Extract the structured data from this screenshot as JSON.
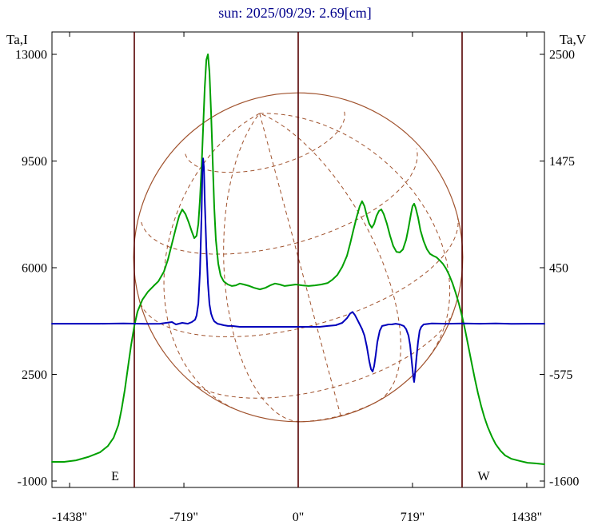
{
  "chart_data": {
    "type": "line",
    "title": "sun: 2025/09/29: 2.69[cm]",
    "title_color": "#00008B",
    "background": "#ffffff",
    "left_axis": {
      "title": "Ta,I",
      "ticks": [
        13000,
        9500,
        6000,
        2500,
        -1000
      ]
    },
    "right_axis": {
      "title": "Ta,V",
      "ticks": [
        2500,
        1475,
        450,
        -575,
        -1600
      ]
    },
    "x_axis": {
      "tick_labels": [
        "-1438\"",
        "-719\"",
        "0\"",
        "719\"",
        "1438\""
      ],
      "tick_values": [
        -1438,
        -719,
        0,
        719,
        1438
      ],
      "range": [
        -1549,
        1549
      ],
      "unit": "arcsec"
    },
    "markers": {
      "east_label": "E",
      "west_label": "W",
      "east_arcsec": -1031,
      "center_arcsec": 0,
      "west_arcsec": 1031,
      "color": "#550000"
    },
    "sun_disk": {
      "radius_arcsec": 1035,
      "b0_deg": 25,
      "p_deg": -15,
      "grid_step_deg": 30,
      "color": "#A0522D"
    },
    "series": [
      {
        "name": "Ta,I",
        "axis": "left",
        "color": "#00A000",
        "points": [
          [
            -1549,
            -370
          ],
          [
            -1473,
            -370
          ],
          [
            -1398,
            -320
          ],
          [
            -1322,
            -210
          ],
          [
            -1247,
            -60
          ],
          [
            -1197,
            150
          ],
          [
            -1161,
            420
          ],
          [
            -1131,
            840
          ],
          [
            -1111,
            1360
          ],
          [
            -1091,
            1990
          ],
          [
            -1071,
            2720
          ],
          [
            -1051,
            3460
          ],
          [
            -1031,
            4090
          ],
          [
            -1011,
            4560
          ],
          [
            -980,
            4950
          ],
          [
            -945,
            5210
          ],
          [
            -910,
            5400
          ],
          [
            -880,
            5550
          ],
          [
            -845,
            5870
          ],
          [
            -820,
            6260
          ],
          [
            -794,
            6790
          ],
          [
            -769,
            7310
          ],
          [
            -749,
            7700
          ],
          [
            -729,
            7910
          ],
          [
            -709,
            7760
          ],
          [
            -689,
            7490
          ],
          [
            -669,
            7180
          ],
          [
            -654,
            6970
          ],
          [
            -639,
            7050
          ],
          [
            -628,
            7440
          ],
          [
            -618,
            8230
          ],
          [
            -608,
            9280
          ],
          [
            -598,
            10590
          ],
          [
            -588,
            11900
          ],
          [
            -578,
            12820
          ],
          [
            -568,
            13000
          ],
          [
            -558,
            12420
          ],
          [
            -548,
            11110
          ],
          [
            -538,
            9540
          ],
          [
            -528,
            7970
          ],
          [
            -518,
            6920
          ],
          [
            -503,
            6130
          ],
          [
            -488,
            5740
          ],
          [
            -468,
            5550
          ],
          [
            -442,
            5450
          ],
          [
            -417,
            5400
          ],
          [
            -392,
            5420
          ],
          [
            -367,
            5480
          ],
          [
            -342,
            5450
          ],
          [
            -307,
            5400
          ],
          [
            -277,
            5340
          ],
          [
            -241,
            5290
          ],
          [
            -206,
            5340
          ],
          [
            -176,
            5420
          ],
          [
            -146,
            5480
          ],
          [
            -116,
            5450
          ],
          [
            -85,
            5400
          ],
          [
            -55,
            5420
          ],
          [
            -15,
            5450
          ],
          [
            25,
            5420
          ],
          [
            65,
            5400
          ],
          [
            106,
            5420
          ],
          [
            146,
            5450
          ],
          [
            186,
            5500
          ],
          [
            216,
            5610
          ],
          [
            246,
            5760
          ],
          [
            277,
            6030
          ],
          [
            307,
            6390
          ],
          [
            327,
            6790
          ],
          [
            347,
            7230
          ],
          [
            367,
            7650
          ],
          [
            387,
            8020
          ],
          [
            402,
            8180
          ],
          [
            417,
            8020
          ],
          [
            432,
            7700
          ],
          [
            447,
            7440
          ],
          [
            463,
            7310
          ],
          [
            478,
            7440
          ],
          [
            493,
            7700
          ],
          [
            508,
            7860
          ],
          [
            523,
            7910
          ],
          [
            538,
            7760
          ],
          [
            558,
            7440
          ],
          [
            578,
            7050
          ],
          [
            598,
            6710
          ],
          [
            618,
            6520
          ],
          [
            639,
            6500
          ],
          [
            659,
            6600
          ],
          [
            679,
            6920
          ],
          [
            694,
            7310
          ],
          [
            709,
            7760
          ],
          [
            719,
            8020
          ],
          [
            729,
            8100
          ],
          [
            739,
            7970
          ],
          [
            754,
            7650
          ],
          [
            769,
            7230
          ],
          [
            789,
            6870
          ],
          [
            810,
            6600
          ],
          [
            830,
            6450
          ],
          [
            850,
            6390
          ],
          [
            870,
            6340
          ],
          [
            890,
            6240
          ],
          [
            910,
            6130
          ],
          [
            930,
            5970
          ],
          [
            950,
            5760
          ],
          [
            970,
            5500
          ],
          [
            990,
            5190
          ],
          [
            1011,
            4820
          ],
          [
            1031,
            4400
          ],
          [
            1051,
            3930
          ],
          [
            1071,
            3400
          ],
          [
            1091,
            2880
          ],
          [
            1111,
            2360
          ],
          [
            1131,
            1880
          ],
          [
            1151,
            1460
          ],
          [
            1171,
            1100
          ],
          [
            1192,
            780
          ],
          [
            1217,
            470
          ],
          [
            1242,
            210
          ],
          [
            1272,
            0
          ],
          [
            1302,
            -160
          ],
          [
            1342,
            -270
          ],
          [
            1393,
            -340
          ],
          [
            1443,
            -400
          ],
          [
            1493,
            -420
          ],
          [
            1549,
            -450
          ]
        ]
      },
      {
        "name": "Ta,V",
        "axis": "right",
        "color": "#0000BB",
        "points": [
          [
            -1549,
            -88
          ],
          [
            -1400,
            -88
          ],
          [
            -1250,
            -88
          ],
          [
            -1100,
            -85
          ],
          [
            -950,
            -90
          ],
          [
            -870,
            -88
          ],
          [
            -794,
            -72
          ],
          [
            -769,
            -95
          ],
          [
            -729,
            -80
          ],
          [
            -694,
            -88
          ],
          [
            -669,
            -72
          ],
          [
            -649,
            -50
          ],
          [
            -639,
            -10
          ],
          [
            -628,
            105
          ],
          [
            -618,
            410
          ],
          [
            -608,
            950
          ],
          [
            -603,
            1370
          ],
          [
            -598,
            1500
          ],
          [
            -593,
            1410
          ],
          [
            -588,
            1100
          ],
          [
            -578,
            640
          ],
          [
            -568,
            300
          ],
          [
            -558,
            100
          ],
          [
            -548,
            10
          ],
          [
            -538,
            -35
          ],
          [
            -528,
            -65
          ],
          [
            -508,
            -88
          ],
          [
            -488,
            -95
          ],
          [
            -468,
            -103
          ],
          [
            -442,
            -110
          ],
          [
            -417,
            -110
          ],
          [
            -367,
            -118
          ],
          [
            -266,
            -118
          ],
          [
            -166,
            -118
          ],
          [
            -65,
            -118
          ],
          [
            35,
            -118
          ],
          [
            136,
            -118
          ],
          [
            186,
            -110
          ],
          [
            236,
            -103
          ],
          [
            277,
            -80
          ],
          [
            307,
            -35
          ],
          [
            327,
            10
          ],
          [
            342,
            25
          ],
          [
            357,
            -5
          ],
          [
            372,
            -50
          ],
          [
            387,
            -95
          ],
          [
            402,
            -140
          ],
          [
            417,
            -203
          ],
          [
            432,
            -310
          ],
          [
            447,
            -448
          ],
          [
            458,
            -525
          ],
          [
            468,
            -548
          ],
          [
            478,
            -494
          ],
          [
            488,
            -387
          ],
          [
            498,
            -264
          ],
          [
            513,
            -156
          ],
          [
            528,
            -110
          ],
          [
            548,
            -103
          ],
          [
            568,
            -95
          ],
          [
            588,
            -95
          ],
          [
            613,
            -88
          ],
          [
            639,
            -95
          ],
          [
            664,
            -110
          ],
          [
            679,
            -140
          ],
          [
            694,
            -203
          ],
          [
            704,
            -295
          ],
          [
            714,
            -448
          ],
          [
            724,
            -602
          ],
          [
            729,
            -648
          ],
          [
            734,
            -587
          ],
          [
            744,
            -418
          ],
          [
            754,
            -264
          ],
          [
            764,
            -156
          ],
          [
            774,
            -120
          ],
          [
            789,
            -95
          ],
          [
            840,
            -85
          ],
          [
            940,
            -88
          ],
          [
            1041,
            -85
          ],
          [
            1141,
            -88
          ],
          [
            1242,
            -85
          ],
          [
            1342,
            -90
          ],
          [
            1443,
            -88
          ],
          [
            1549,
            -88
          ]
        ]
      }
    ]
  }
}
